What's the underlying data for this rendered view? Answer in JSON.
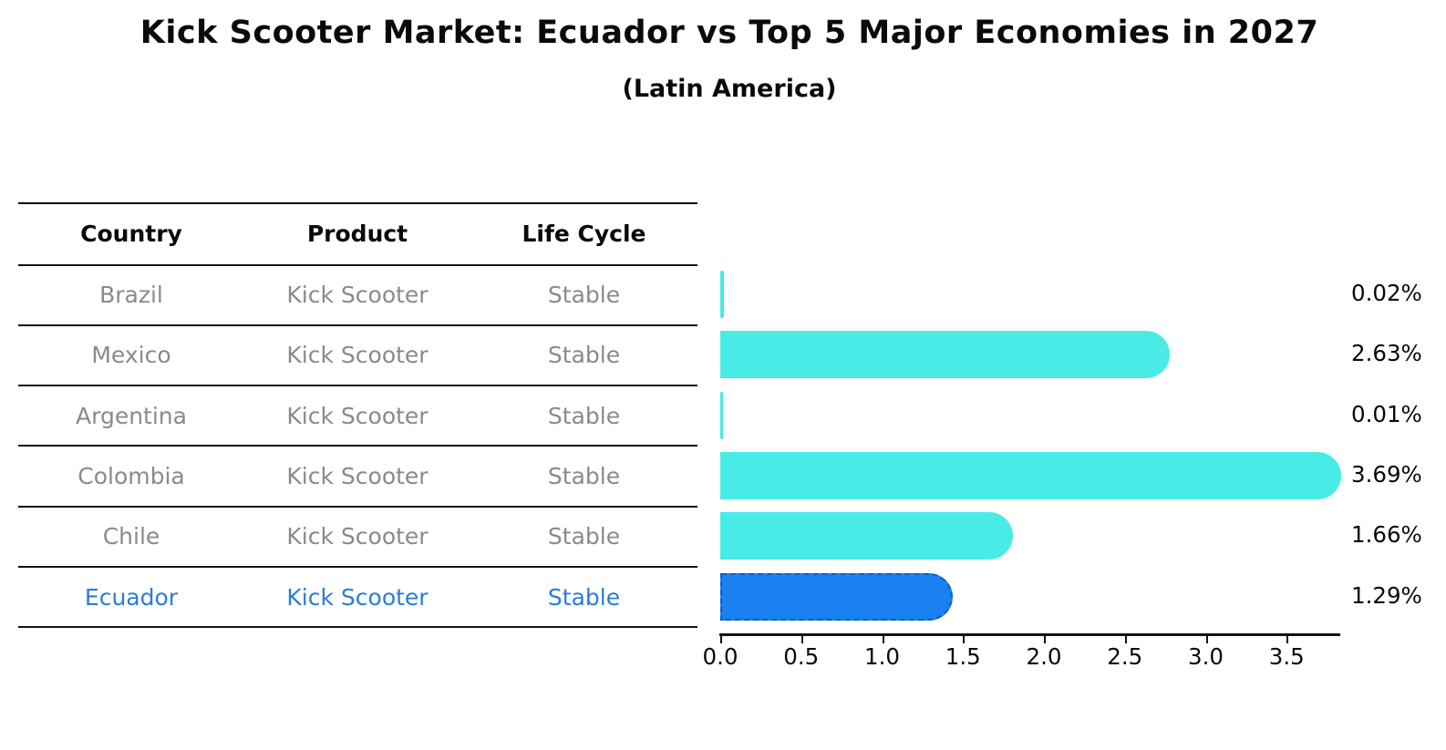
{
  "title": "Kick Scooter Market: Ecuador vs Top 5 Major Economies in 2027",
  "subtitle": "(Latin America)",
  "table": {
    "headers": [
      "Country",
      "Product",
      "Life Cycle"
    ],
    "rows": [
      {
        "country": "Brazil",
        "product": "Kick Scooter",
        "life_cycle": "Stable",
        "highlight": false
      },
      {
        "country": "Mexico",
        "product": "Kick Scooter",
        "life_cycle": "Stable",
        "highlight": false
      },
      {
        "country": "Argentina",
        "product": "Kick Scooter",
        "life_cycle": "Stable",
        "highlight": false
      },
      {
        "country": "Colombia",
        "product": "Kick Scooter",
        "life_cycle": "Stable",
        "highlight": false
      },
      {
        "country": "Chile",
        "product": "Kick Scooter",
        "life_cycle": "Stable",
        "highlight": true
      }
    ],
    "highlight_row": {
      "country": "Ecuador",
      "product": "Kick Scooter",
      "life_cycle": "Stable"
    }
  },
  "chart_data": {
    "type": "bar",
    "orientation": "horizontal",
    "title": "Kick Scooter Market: Ecuador vs Top 5 Major Economies in 2027",
    "subtitle": "(Latin America)",
    "categories": [
      "Brazil",
      "Mexico",
      "Argentina",
      "Colombia",
      "Chile",
      "Ecuador"
    ],
    "values": [
      0.02,
      2.63,
      0.01,
      3.69,
      1.66,
      1.29
    ],
    "value_labels": [
      "0.02%",
      "2.63%",
      "0.01%",
      "3.69%",
      "1.66%",
      "1.29%"
    ],
    "xlabel": "",
    "ylabel": "",
    "xticks": [
      "0.0",
      "0.5",
      "1.0",
      "1.5",
      "2.0",
      "2.5",
      "3.0",
      "3.5"
    ],
    "xtick_values": [
      0,
      0.5,
      1.0,
      1.5,
      2.0,
      2.5,
      3.0,
      3.5
    ],
    "xlim": [
      0,
      3.83
    ],
    "grid": false,
    "legend": "none",
    "bar_color": "#48EBE6",
    "highlight_category": "Ecuador",
    "highlight_bar_color": "#1A82F0",
    "highlight_border_color": "#0F5CC0"
  },
  "colors": {
    "background": "#FFFFFF",
    "table_text": "#8A8A8A",
    "header_text": "#0A0A0A",
    "highlight_text": "#2B7CD6",
    "axis": "#111111",
    "value_label_text": "#0A0A0A"
  }
}
